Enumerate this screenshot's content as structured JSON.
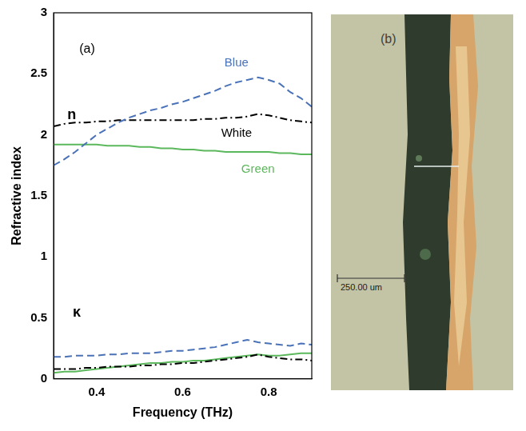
{
  "chart_data": {
    "type": "line",
    "x_label": "Frequency (THz)",
    "y_label": "Refractive index",
    "annotations": [
      "(a)",
      "n",
      "κ"
    ],
    "x": [
      0.3,
      0.325,
      0.35,
      0.375,
      0.4,
      0.425,
      0.45,
      0.475,
      0.5,
      0.525,
      0.55,
      0.575,
      0.6,
      0.625,
      0.65,
      0.675,
      0.7,
      0.725,
      0.75,
      0.775,
      0.8,
      0.825,
      0.85,
      0.875,
      0.9
    ],
    "series": [
      {
        "name": "Blue",
        "color": "#4a72b8",
        "line_style": "dashed",
        "values": [
          1.75,
          1.8,
          1.86,
          1.93,
          2.0,
          2.05,
          2.1,
          2.14,
          2.17,
          2.2,
          2.22,
          2.25,
          2.27,
          2.3,
          2.33,
          2.36,
          2.4,
          2.43,
          2.45,
          2.47,
          2.45,
          2.42,
          2.35,
          2.3,
          2.23
        ],
        "kappa_values": [
          0.18,
          0.18,
          0.19,
          0.19,
          0.19,
          0.2,
          0.2,
          0.21,
          0.21,
          0.21,
          0.22,
          0.23,
          0.23,
          0.24,
          0.25,
          0.26,
          0.28,
          0.3,
          0.32,
          0.3,
          0.29,
          0.28,
          0.27,
          0.29,
          0.28
        ]
      },
      {
        "name": "White",
        "color": "#000000",
        "line_style": "dashdot",
        "values": [
          2.07,
          2.09,
          2.1,
          2.1,
          2.11,
          2.11,
          2.12,
          2.12,
          2.12,
          2.12,
          2.12,
          2.12,
          2.12,
          2.12,
          2.13,
          2.13,
          2.14,
          2.14,
          2.15,
          2.17,
          2.16,
          2.14,
          2.12,
          2.11,
          2.1
        ],
        "kappa_values": [
          0.08,
          0.08,
          0.08,
          0.09,
          0.09,
          0.1,
          0.1,
          0.1,
          0.11,
          0.11,
          0.12,
          0.12,
          0.13,
          0.13,
          0.14,
          0.15,
          0.16,
          0.17,
          0.18,
          0.2,
          0.18,
          0.17,
          0.16,
          0.16,
          0.15
        ]
      },
      {
        "name": "Green",
        "color": "#5cb85c",
        "line_style": "solid",
        "values": [
          1.92,
          1.92,
          1.92,
          1.92,
          1.92,
          1.91,
          1.91,
          1.91,
          1.9,
          1.9,
          1.89,
          1.89,
          1.88,
          1.88,
          1.87,
          1.87,
          1.86,
          1.86,
          1.86,
          1.86,
          1.86,
          1.85,
          1.85,
          1.84,
          1.84
        ],
        "kappa_values": [
          0.05,
          0.06,
          0.06,
          0.07,
          0.08,
          0.09,
          0.1,
          0.11,
          0.12,
          0.13,
          0.13,
          0.14,
          0.14,
          0.15,
          0.15,
          0.16,
          0.17,
          0.18,
          0.19,
          0.2,
          0.19,
          0.19,
          0.2,
          0.21,
          0.21
        ]
      }
    ],
    "xlim": [
      0.3,
      0.9
    ],
    "xticks": [
      0.4,
      0.6,
      0.8
    ],
    "ylim": [
      0,
      3
    ],
    "yticks": [
      0,
      0.5,
      1,
      1.5,
      2,
      2.5,
      3
    ],
    "grid": false
  },
  "photo": {
    "label": "(b)",
    "scale_bar": "250.00 um"
  }
}
